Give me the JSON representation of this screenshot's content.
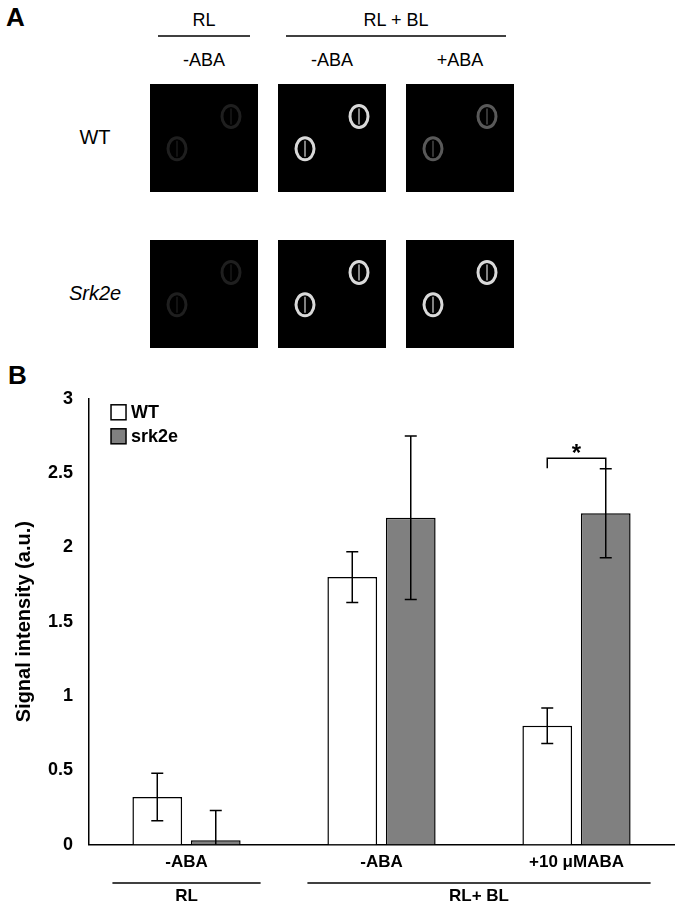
{
  "panel_a": {
    "label": "A",
    "column_groups": [
      {
        "label": "RL",
        "columns": [
          "-ABA"
        ]
      },
      {
        "label": "RL + BL",
        "columns": [
          "-ABA",
          "+ABA"
        ]
      }
    ],
    "rows": [
      "WT",
      "Srk2e"
    ]
  },
  "chart_data": {
    "type": "bar",
    "panel_label": "B",
    "y_label": "Signal intensity (a.u.)",
    "categories": [
      "-ABA",
      "-ABA",
      "+10 μMABA"
    ],
    "category_groups": [
      {
        "label": "RL",
        "size": 1
      },
      {
        "label": "RL+ BL",
        "size": 2
      }
    ],
    "series": [
      {
        "name": "WT",
        "color": "#ffffff",
        "values": [
          0.32,
          1.8,
          0.8
        ],
        "errors": [
          0.16,
          0.17,
          0.12
        ]
      },
      {
        "name": "srk2e",
        "color": "#808080",
        "values": [
          0.03,
          2.2,
          2.23
        ],
        "errors": [
          0.2,
          0.55,
          0.3
        ]
      }
    ],
    "ylim": [
      0,
      3
    ],
    "yticks": [
      0,
      0.5,
      1,
      1.5,
      2,
      2.5,
      3
    ],
    "grid": false,
    "legend": "upper left",
    "annotations": [
      {
        "text": "*",
        "category": "+10 μMABA",
        "y": 2.6
      }
    ]
  }
}
